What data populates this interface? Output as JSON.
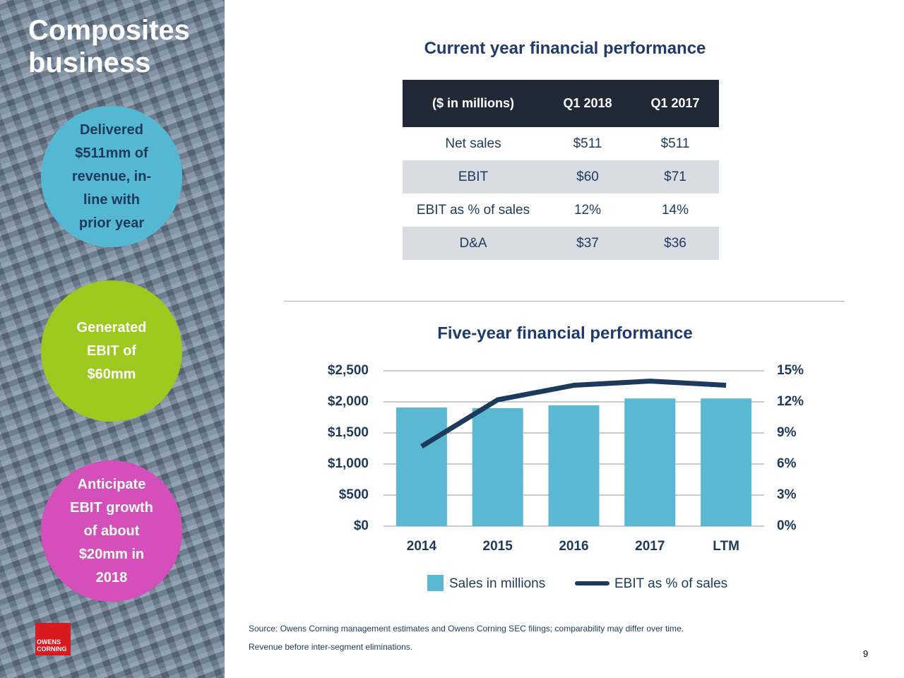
{
  "title": "Composites business",
  "highlights": [
    "Delivered $511mm of revenue, in-line with prior year",
    "Generated EBIT of $60mm",
    "Anticipate EBIT growth of about $20mm in 2018"
  ],
  "table": {
    "title": "Current year financial performance",
    "columns": [
      "($ in millions)",
      "Q1 2018",
      "Q1 2017"
    ],
    "rows": [
      [
        "Net sales",
        "$511",
        "$511"
      ],
      [
        "EBIT",
        "$60",
        "$71"
      ],
      [
        "EBIT as % of sales",
        "12%",
        "14%"
      ],
      [
        "D&A",
        "$37",
        "$36"
      ]
    ]
  },
  "chart_data": {
    "type": "bar",
    "title": "Five-year financial performance",
    "categories": [
      "2014",
      "2015",
      "2016",
      "2017",
      "LTM"
    ],
    "series": [
      {
        "name": "Sales in millions",
        "type": "bar",
        "color": "#5ab8d2",
        "values": [
          1910,
          1900,
          1945,
          2055,
          2055
        ]
      },
      {
        "name": "EBIT as % of sales",
        "type": "line",
        "axis": "y2",
        "color": "#1d3a5c",
        "values": [
          7.7,
          12.2,
          13.6,
          14.0,
          13.6
        ]
      }
    ],
    "ylim": [
      0,
      2500
    ],
    "yticks": [
      {
        "value": 0,
        "label": "$0"
      },
      {
        "value": 500,
        "label": "$500"
      },
      {
        "value": 1000,
        "label": "$1,000"
      },
      {
        "value": 1500,
        "label": "$1,500"
      },
      {
        "value": 2000,
        "label": "$2,000"
      },
      {
        "value": 2500,
        "label": "$2,500"
      }
    ],
    "y2lim": [
      0,
      15
    ],
    "y2ticks": [
      {
        "value": 0,
        "label": "0%"
      },
      {
        "value": 3,
        "label": "3%"
      },
      {
        "value": 6,
        "label": "6%"
      },
      {
        "value": 9,
        "label": "9%"
      },
      {
        "value": 12,
        "label": "12%"
      },
      {
        "value": 15,
        "label": "15%"
      }
    ],
    "grid": true,
    "legend": "bottom"
  },
  "footnotes": [
    "Source: Owens Corning management estimates and Owens Corning SEC filings; comparability may differ over time.",
    "Revenue before inter-segment eliminations."
  ],
  "logo": "OWENS CORNING",
  "page_number": "9"
}
